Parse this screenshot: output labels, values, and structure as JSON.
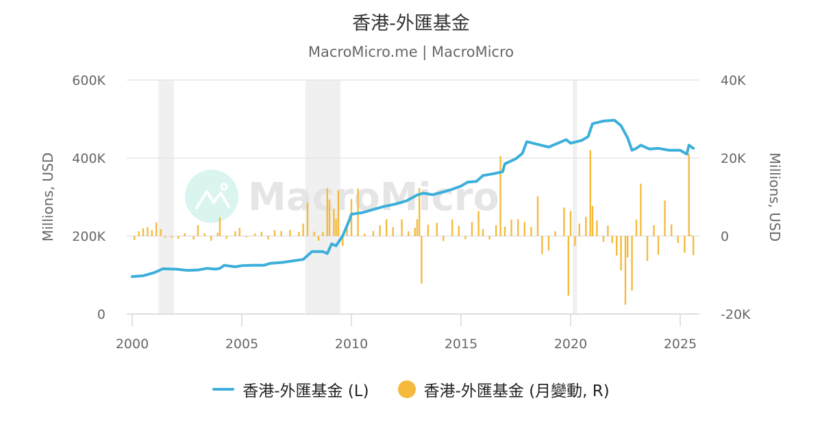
{
  "header": {
    "title": "香港-外匯基金",
    "subtitle": "MacroMicro.me | MacroMicro"
  },
  "watermark": {
    "text": "MacroMicro",
    "icon": "macromicro-logo-icon"
  },
  "legend": [
    {
      "label": "香港-外匯基金 (L)",
      "color": "#3BAFDA",
      "symbol": "line"
    },
    {
      "label": "香港-外匯基金 (月變動, R)",
      "color": "#F5BA3C",
      "symbol": "circle"
    }
  ],
  "colors": {
    "line": "#3BAFDA",
    "bar": "#F5BA3C",
    "band": "#F0F0F0",
    "grid": "#E6E6E6"
  },
  "chart_data": {
    "type": "line+bar",
    "title": "香港-外匯基金",
    "subtitle": "MacroMicro.me | MacroMicro",
    "xlabel": "",
    "ylabel_left": "Millions, USD",
    "ylabel_right": "Millions, USD",
    "x_ticks": [
      "2000",
      "2005",
      "2010",
      "2015",
      "2020",
      "2025"
    ],
    "y_left_ticks": [
      "0",
      "200K",
      "400K",
      "600K"
    ],
    "y_right_ticks": [
      "-20K",
      "0",
      "20K",
      "40K"
    ],
    "ylim_left": [
      0,
      600000
    ],
    "ylim_right": [
      -20000,
      40000
    ],
    "grid": true,
    "legend_position": "bottom",
    "shaded_periods": [
      [
        2001.2,
        2001.9
      ],
      [
        2007.9,
        2009.5
      ],
      [
        2020.1,
        2020.3
      ]
    ],
    "series": [
      {
        "name": "香港-外匯基金 (L)",
        "type": "line",
        "axis": "left",
        "points": [
          [
            2000.0,
            96000
          ],
          [
            2000.5,
            98000
          ],
          [
            2001.0,
            106000
          ],
          [
            2001.4,
            116000
          ],
          [
            2002.0,
            115000
          ],
          [
            2002.5,
            112000
          ],
          [
            2003.0,
            113000
          ],
          [
            2003.4,
            117000
          ],
          [
            2003.8,
            115000
          ],
          [
            2004.0,
            117000
          ],
          [
            2004.2,
            125000
          ],
          [
            2004.7,
            121000
          ],
          [
            2005.0,
            124000
          ],
          [
            2005.5,
            125000
          ],
          [
            2006.0,
            125000
          ],
          [
            2006.3,
            130000
          ],
          [
            2006.8,
            132000
          ],
          [
            2007.3,
            136000
          ],
          [
            2007.8,
            140000
          ],
          [
            2008.2,
            160000
          ],
          [
            2008.7,
            160000
          ],
          [
            2008.9,
            155000
          ],
          [
            2009.1,
            180000
          ],
          [
            2009.3,
            175000
          ],
          [
            2009.6,
            200000
          ],
          [
            2009.9,
            240000
          ],
          [
            2010.0,
            256000
          ],
          [
            2010.5,
            260000
          ],
          [
            2011.0,
            268000
          ],
          [
            2011.5,
            276000
          ],
          [
            2012.0,
            282000
          ],
          [
            2012.5,
            290000
          ],
          [
            2013.0,
            305000
          ],
          [
            2013.3,
            310000
          ],
          [
            2013.7,
            306000
          ],
          [
            2014.0,
            310000
          ],
          [
            2014.5,
            318000
          ],
          [
            2015.0,
            328000
          ],
          [
            2015.3,
            338000
          ],
          [
            2015.7,
            340000
          ],
          [
            2016.0,
            355000
          ],
          [
            2016.5,
            360000
          ],
          [
            2016.9,
            365000
          ],
          [
            2017.0,
            385000
          ],
          [
            2017.5,
            398000
          ],
          [
            2017.8,
            412000
          ],
          [
            2018.0,
            442000
          ],
          [
            2018.5,
            435000
          ],
          [
            2019.0,
            428000
          ],
          [
            2019.5,
            440000
          ],
          [
            2019.8,
            447000
          ],
          [
            2020.0,
            438000
          ],
          [
            2020.5,
            445000
          ],
          [
            2020.8,
            455000
          ],
          [
            2021.0,
            488000
          ],
          [
            2021.5,
            495000
          ],
          [
            2022.0,
            497000
          ],
          [
            2022.3,
            483000
          ],
          [
            2022.6,
            452000
          ],
          [
            2022.8,
            420000
          ],
          [
            2023.0,
            425000
          ],
          [
            2023.2,
            433000
          ],
          [
            2023.6,
            423000
          ],
          [
            2024.0,
            425000
          ],
          [
            2024.5,
            420000
          ],
          [
            2025.0,
            420000
          ],
          [
            2025.3,
            410000
          ],
          [
            2025.4,
            433000
          ],
          [
            2025.6,
            425000
          ]
        ]
      },
      {
        "name": "香港-外匯基金 (月變動, R)",
        "type": "bar",
        "axis": "right",
        "points": [
          [
            2000.1,
            -1000
          ],
          [
            2000.3,
            1200
          ],
          [
            2000.5,
            2000
          ],
          [
            2000.7,
            2300
          ],
          [
            2000.9,
            1500
          ],
          [
            2001.1,
            3500
          ],
          [
            2001.3,
            1800
          ],
          [
            2001.5,
            -400
          ],
          [
            2001.8,
            -500
          ],
          [
            2002.1,
            -700
          ],
          [
            2002.4,
            700
          ],
          [
            2002.8,
            -900
          ],
          [
            2003.0,
            2800
          ],
          [
            2003.3,
            700
          ],
          [
            2003.6,
            -1200
          ],
          [
            2003.9,
            900
          ],
          [
            2004.0,
            4800
          ],
          [
            2004.3,
            -700
          ],
          [
            2004.7,
            1200
          ],
          [
            2004.9,
            2100
          ],
          [
            2005.2,
            -300
          ],
          [
            2005.6,
            600
          ],
          [
            2005.9,
            1100
          ],
          [
            2006.2,
            -900
          ],
          [
            2006.5,
            1500
          ],
          [
            2006.8,
            1300
          ],
          [
            2007.2,
            1600
          ],
          [
            2007.6,
            1100
          ],
          [
            2007.8,
            3200
          ],
          [
            2008.0,
            8600
          ],
          [
            2008.3,
            1100
          ],
          [
            2008.5,
            -1200
          ],
          [
            2008.7,
            1000
          ],
          [
            2008.9,
            12300
          ],
          [
            2009.0,
            9400
          ],
          [
            2009.2,
            7000
          ],
          [
            2009.3,
            4400
          ],
          [
            2009.4,
            11700
          ],
          [
            2009.6,
            -2500
          ],
          [
            2009.8,
            2800
          ],
          [
            2010.0,
            9500
          ],
          [
            2010.3,
            12200
          ],
          [
            2010.6,
            600
          ],
          [
            2011.0,
            1300
          ],
          [
            2011.3,
            2700
          ],
          [
            2011.6,
            4300
          ],
          [
            2011.9,
            2300
          ],
          [
            2012.3,
            4300
          ],
          [
            2012.6,
            1200
          ],
          [
            2012.9,
            2100
          ],
          [
            2013.0,
            4300
          ],
          [
            2013.1,
            12300
          ],
          [
            2013.2,
            -12200
          ],
          [
            2013.5,
            2900
          ],
          [
            2013.9,
            3400
          ],
          [
            2014.2,
            -1300
          ],
          [
            2014.6,
            4300
          ],
          [
            2014.9,
            2600
          ],
          [
            2015.2,
            -800
          ],
          [
            2015.5,
            3600
          ],
          [
            2015.8,
            6400
          ],
          [
            2016.0,
            1800
          ],
          [
            2016.3,
            -900
          ],
          [
            2016.6,
            2800
          ],
          [
            2016.8,
            20500
          ],
          [
            2017.0,
            2400
          ],
          [
            2017.3,
            4200
          ],
          [
            2017.6,
            4300
          ],
          [
            2017.9,
            3600
          ],
          [
            2018.2,
            2300
          ],
          [
            2018.5,
            10200
          ],
          [
            2018.7,
            -4700
          ],
          [
            2019.0,
            -3700
          ],
          [
            2019.3,
            1200
          ],
          [
            2019.7,
            7300
          ],
          [
            2019.9,
            -15300
          ],
          [
            2020.0,
            6400
          ],
          [
            2020.2,
            -2500
          ],
          [
            2020.4,
            3200
          ],
          [
            2020.7,
            4900
          ],
          [
            2020.9,
            22000
          ],
          [
            2021.0,
            7700
          ],
          [
            2021.2,
            4000
          ],
          [
            2021.5,
            -1500
          ],
          [
            2021.7,
            2700
          ],
          [
            2021.9,
            -1800
          ],
          [
            2022.1,
            -5000
          ],
          [
            2022.3,
            -8800
          ],
          [
            2022.5,
            -17600
          ],
          [
            2022.6,
            -5500
          ],
          [
            2022.8,
            -14000
          ],
          [
            2023.0,
            4200
          ],
          [
            2023.2,
            13400
          ],
          [
            2023.5,
            -6400
          ],
          [
            2023.8,
            2800
          ],
          [
            2024.0,
            -4800
          ],
          [
            2024.3,
            9100
          ],
          [
            2024.6,
            3000
          ],
          [
            2024.9,
            -1800
          ],
          [
            2025.2,
            -4300
          ],
          [
            2025.4,
            21100
          ],
          [
            2025.5,
            300
          ],
          [
            2025.6,
            -4900
          ]
        ]
      }
    ]
  }
}
